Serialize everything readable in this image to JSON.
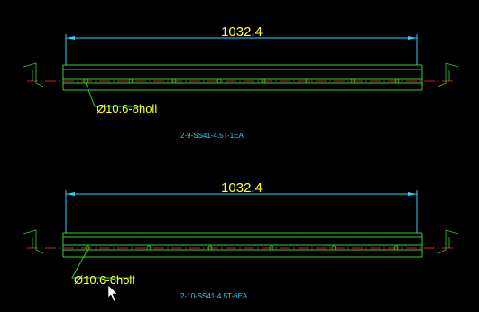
{
  "parts": [
    {
      "dimension": "1032.4",
      "hole_note": "Ø10.6-8holl",
      "label": "2-9-SS41-4.5T-1EA"
    },
    {
      "dimension": "1032.4",
      "hole_note": "Ø10.6-6holl",
      "label": "2-10-SS41-4.5T-6EA"
    }
  ]
}
